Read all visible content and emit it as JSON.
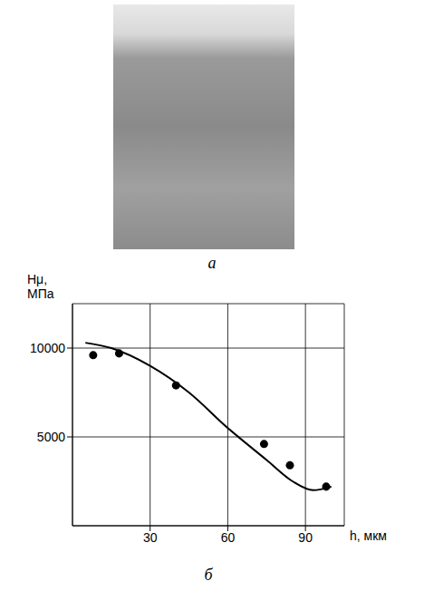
{
  "panel_labels": [
    "а",
    "б"
  ],
  "chart_data": {
    "type": "line",
    "y_label": "Hμ, МПа",
    "x_label": "h, мкм",
    "xlim": [
      0,
      105
    ],
    "xticks": [
      30,
      60,
      90
    ],
    "ylim": [
      0,
      12500
    ],
    "yticks": [
      5000,
      10000
    ],
    "grid": true,
    "series": [
      {
        "type": "line",
        "color": "#000000",
        "line_style": "solid",
        "x": [
          5,
          15,
          30,
          45,
          60,
          75,
          85,
          93,
          100
        ],
        "values": [
          10300,
          10000,
          9000,
          7500,
          5500,
          3700,
          2500,
          2000,
          2200
        ]
      },
      {
        "type": "scatter",
        "color": "#000000",
        "marker": "circle",
        "x": [
          8,
          18,
          40,
          74,
          84,
          98
        ],
        "values": [
          9600,
          9700,
          7900,
          4600,
          3400,
          2200
        ]
      }
    ]
  }
}
